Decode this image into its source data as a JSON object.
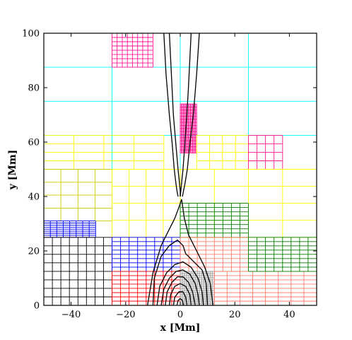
{
  "chart_data": {
    "type": "mesh",
    "title": "",
    "xlabel": "x [Mm]",
    "ylabel": "y [Mm]",
    "xlim": [
      -50,
      50
    ],
    "ylim": [
      0,
      100
    ],
    "x_ticks": [
      -40,
      -20,
      0,
      20,
      40
    ],
    "y_ticks": [
      0,
      20,
      40,
      60,
      80,
      100
    ],
    "x_tick_labels": [
      "−40",
      "−20",
      "0",
      "20",
      "40"
    ],
    "y_tick_labels": [
      "0",
      "20",
      "40",
      "60",
      "80",
      "100"
    ],
    "grid": false,
    "legend": "none",
    "block_colors": [
      "#00ffff",
      "#ff1493",
      "#ffff00",
      "#000000",
      "#0000ff",
      "#ff0000",
      "#ff7f6e",
      "#999999",
      "#008000",
      "#cccc00"
    ],
    "regions": [
      {
        "color": "#00ffff",
        "x": [
          -50,
          50
        ],
        "y": [
          50,
          100
        ],
        "level": 2
      },
      {
        "color": "#ff1493",
        "x": [
          -25,
          -10
        ],
        "y": [
          87.5,
          100
        ],
        "level": 3
      },
      {
        "color": "#ff1493",
        "x": [
          0,
          6
        ],
        "y": [
          56,
          74
        ],
        "level": 4
      },
      {
        "color": "#ffff00",
        "x": [
          -50,
          -6
        ],
        "y": [
          50,
          62.5
        ],
        "level": 2
      },
      {
        "color": "#ffff00",
        "x": [
          6,
          25
        ],
        "y": [
          50,
          62.5
        ],
        "level": 2
      },
      {
        "color": "#ff1493",
        "x": [
          25,
          37.5
        ],
        "y": [
          50,
          62.5
        ],
        "level": 2
      },
      {
        "color": "#cccc00",
        "x": [
          -50,
          -25
        ],
        "y": [
          31,
          50
        ],
        "level": 2
      },
      {
        "color": "#ffff00",
        "x": [
          -25,
          0
        ],
        "y": [
          25,
          50
        ],
        "level": 2
      },
      {
        "color": "#ffff00",
        "x": [
          0,
          50
        ],
        "y": [
          25,
          50
        ],
        "level": 2
      },
      {
        "color": "#008000",
        "x": [
          0,
          25
        ],
        "y": [
          25,
          37.5
        ],
        "level": 3
      },
      {
        "color": "#0000ff",
        "x": [
          -50,
          -31
        ],
        "y": [
          25,
          31
        ],
        "level": 3
      },
      {
        "color": "#000000",
        "x": [
          -50,
          -25
        ],
        "y": [
          0,
          25
        ],
        "level": 3
      },
      {
        "color": "#0000ff",
        "x": [
          -25,
          0
        ],
        "y": [
          12.5,
          25
        ],
        "level": 3
      },
      {
        "color": "#ff0000",
        "x": [
          -25,
          0
        ],
        "y": [
          0,
          12.5
        ],
        "level": 3
      },
      {
        "color": "#ff7f6e",
        "x": [
          0,
          25
        ],
        "y": [
          12.5,
          25
        ],
        "level": 3
      },
      {
        "color": "#999999",
        "x": [
          0,
          12.5
        ],
        "y": [
          0,
          12.5
        ],
        "level": 4
      },
      {
        "color": "#ff7f6e",
        "x": [
          12.5,
          50
        ],
        "y": [
          0,
          12.5
        ],
        "level": 3
      },
      {
        "color": "#008000",
        "x": [
          25,
          50
        ],
        "y": [
          12.5,
          25
        ],
        "level": 3
      }
    ],
    "field_lines": [
      {
        "x": [
          -6.0,
          -5.2,
          -4.0,
          -3.0,
          -2.2,
          -1.6,
          -1.2,
          -0.8
        ],
        "y": [
          100,
          85,
          70,
          60,
          50,
          45,
          42,
          40
        ]
      },
      {
        "x": [
          7.0,
          6.0,
          4.8,
          3.6,
          2.6,
          1.8,
          1.2,
          0.8
        ],
        "y": [
          100,
          85,
          70,
          60,
          50,
          45,
          42,
          40
        ]
      },
      {
        "x": [
          -4.0,
          -3.5,
          -3.0,
          -2.5,
          -1.5,
          -0.8,
          -0.4,
          0.0,
          0.0
        ],
        "y": [
          100,
          90,
          80,
          70,
          58,
          50,
          46,
          42,
          40
        ]
      },
      {
        "x": [
          4.0,
          3.5,
          3.0,
          2.4,
          1.6,
          1.0,
          0.6,
          0.2,
          0.0
        ],
        "y": [
          100,
          90,
          80,
          70,
          58,
          50,
          46,
          42,
          40
        ]
      },
      {
        "x": [
          -12,
          -10,
          -7,
          -4,
          -2,
          -0.5,
          0.5
        ],
        "y": [
          0,
          12,
          22,
          28,
          32,
          36,
          39
        ]
      },
      {
        "x": [
          12,
          11,
          9,
          6,
          3,
          1.5,
          0.5
        ],
        "y": [
          0,
          8,
          14,
          20,
          26,
          32,
          39
        ]
      },
      {
        "x": [
          -10,
          -9.5,
          -7,
          -4,
          -1,
          1,
          2
        ],
        "y": [
          0,
          10,
          18,
          22,
          24,
          22,
          19
        ]
      },
      {
        "x": [
          10,
          9.5,
          8,
          5,
          3,
          2
        ],
        "y": [
          0,
          8,
          13,
          16,
          18,
          19
        ]
      },
      {
        "x": [
          -8.5,
          -7.5,
          -5.0,
          -2.0,
          1.0,
          4.0,
          6.5,
          8.0,
          8.5
        ],
        "y": [
          0,
          7,
          12,
          15,
          16,
          14,
          10,
          5,
          0
        ]
      },
      {
        "x": [
          -7.0,
          -6.0,
          -4.0,
          -1.5,
          1.0,
          3.5,
          5.5,
          6.5,
          7.0
        ],
        "y": [
          0,
          6,
          10,
          12.5,
          13,
          11.5,
          8,
          4,
          0
        ]
      },
      {
        "x": [
          -5.5,
          -4.8,
          -3.0,
          -1.0,
          1.0,
          3.0,
          4.5,
          5.5
        ],
        "y": [
          0,
          5,
          8.5,
          10.5,
          10.5,
          8.5,
          5,
          0
        ]
      },
      {
        "x": [
          -4.0,
          -3.5,
          -2.0,
          0.0,
          2.0,
          3.5,
          4.0
        ],
        "y": [
          0,
          4,
          7,
          8,
          7,
          4,
          0
        ]
      },
      {
        "x": [
          -2.5,
          -2.0,
          -0.5,
          1.0,
          2.0,
          2.5
        ],
        "y": [
          0,
          3,
          5,
          5,
          3,
          0
        ]
      },
      {
        "x": [
          -1.2,
          -0.8,
          0.0,
          0.8,
          1.2
        ],
        "y": [
          0,
          1.8,
          2.5,
          1.8,
          0
        ]
      }
    ]
  }
}
